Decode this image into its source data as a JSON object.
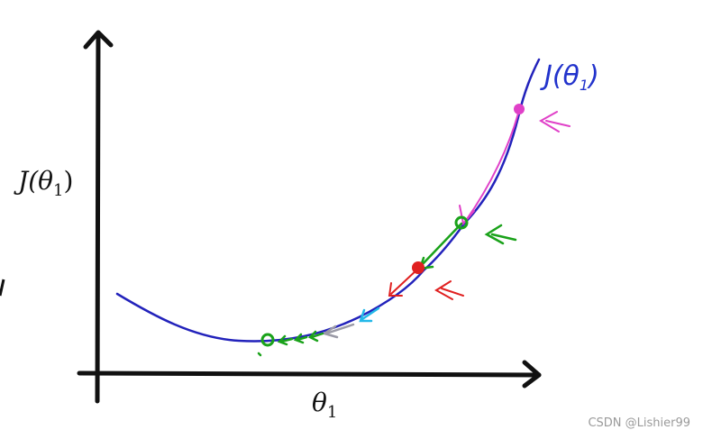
{
  "labels": {
    "y_axis": "J(θ1)",
    "x_axis": "θ1",
    "curve": "J(θ1)"
  },
  "watermark": "CSDN @Lishier99",
  "colors": {
    "axes": "#111111",
    "curve": "#2222bb",
    "magenta": "#e040c8",
    "green": "#1aa21a",
    "red": "#e02020",
    "cyan": "#22b8e8",
    "gray": "#9a9aa6"
  }
}
